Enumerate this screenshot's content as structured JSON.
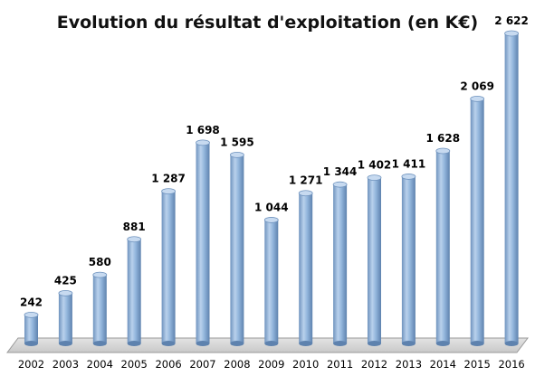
{
  "chart_data": {
    "type": "bar",
    "title": "Evolution du résultat d'exploitation (en K€)",
    "xlabel": "",
    "ylabel": "",
    "categories": [
      "2002",
      "2003",
      "2004",
      "2005",
      "2006",
      "2007",
      "2008",
      "2009",
      "2010",
      "2011",
      "2012",
      "2013",
      "2014",
      "2015",
      "2016"
    ],
    "values": [
      242,
      425,
      580,
      881,
      1287,
      1698,
      1595,
      1044,
      1271,
      1344,
      1402,
      1411,
      1628,
      2069,
      2622
    ],
    "value_labels": [
      "242",
      "425",
      "580",
      "881",
      "1 287",
      "1 698",
      "1 595",
      "1 044",
      "1 271",
      "1 344",
      "1 402",
      "1 411",
      "1 628",
      "2 069",
      "2 622"
    ],
    "ylim": [
      0,
      2622
    ],
    "grid": false,
    "legend": "none",
    "bar_color": "#8FB4DC",
    "bar_edge_color": "#5A7FA8"
  }
}
